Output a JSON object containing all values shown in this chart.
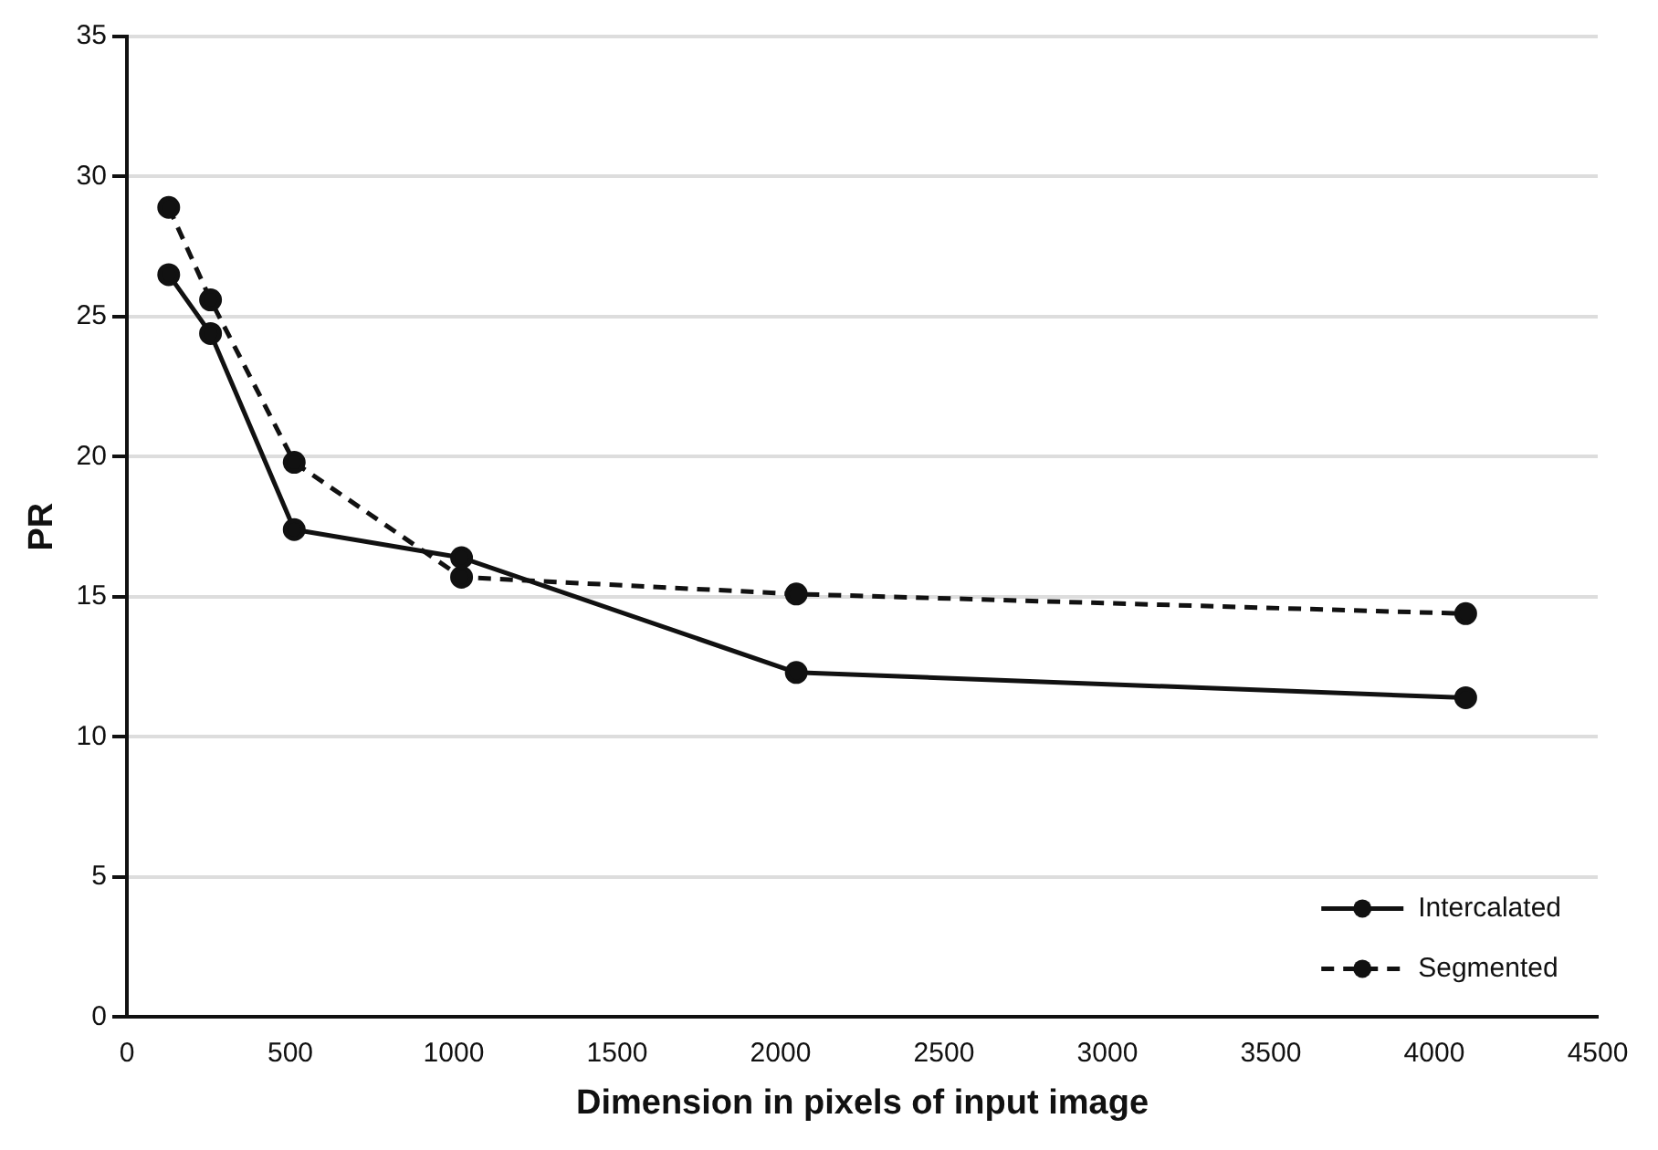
{
  "chart_data": {
    "type": "line",
    "xlabel": "Dimension in pixels of input image",
    "ylabel": "PR",
    "xlim": [
      0,
      4500
    ],
    "xticks": [
      0,
      500,
      1000,
      1500,
      2000,
      2500,
      3000,
      3500,
      4000,
      4500
    ],
    "ylim": [
      0,
      35
    ],
    "yticks": [
      0,
      5,
      10,
      15,
      20,
      25,
      30,
      35
    ],
    "grid": "y",
    "legend": "bottom right",
    "marker": "circle",
    "series": [
      {
        "name": "Intercalated",
        "color": "#111111",
        "line_style": "solid",
        "x": [
          128,
          256,
          512,
          1024,
          2048,
          4096
        ],
        "values": [
          26.5,
          24.4,
          17.4,
          16.4,
          12.3,
          11.4
        ]
      },
      {
        "name": "Segmented",
        "color": "#111111",
        "line_style": "dashed",
        "x": [
          128,
          256,
          512,
          1024,
          2048,
          4096
        ],
        "values": [
          28.9,
          25.6,
          19.8,
          15.7,
          15.1,
          14.4
        ]
      }
    ]
  }
}
